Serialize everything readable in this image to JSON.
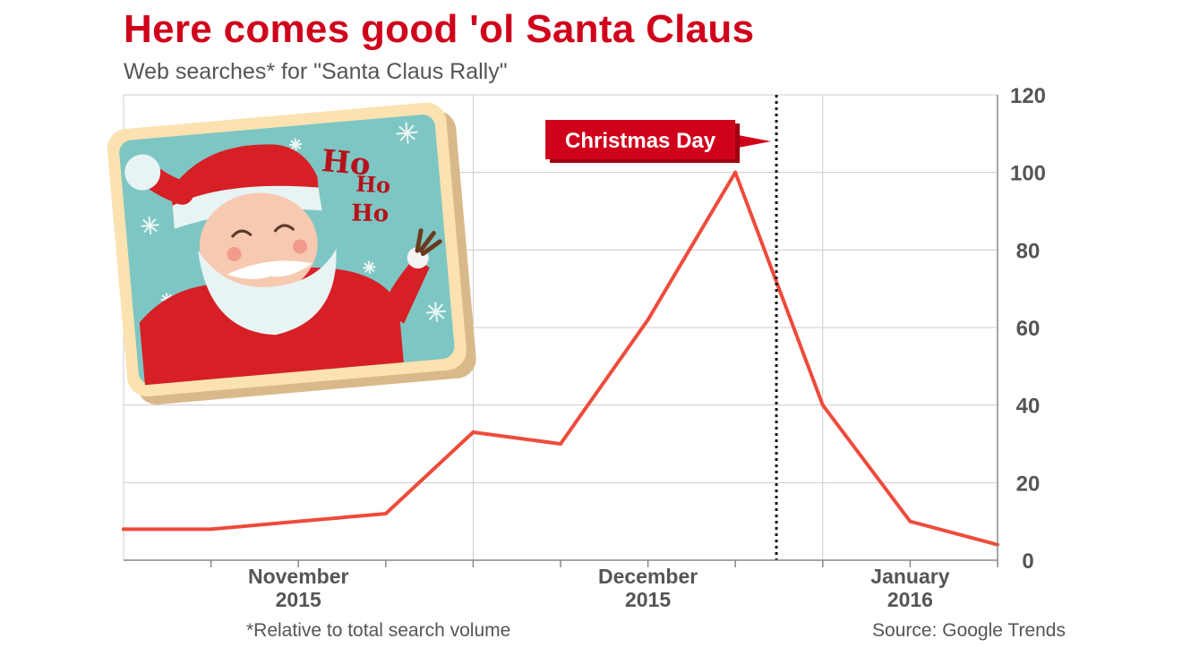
{
  "title": "Here comes good 'ol Santa Claus",
  "subtitle": "Web searches* for \"Santa Claus Rally\"",
  "footnote": "*Relative to total search volume",
  "source": "Source: Google Trends",
  "illustration": {
    "icon": "santa-claus-illustration",
    "text": [
      "Ho",
      "Ho",
      "Ho"
    ]
  },
  "colors": {
    "accent": "#d0021b",
    "line": "#ee4b3b",
    "grid": "#cccccc",
    "axis": "#555555"
  },
  "chart_data": {
    "type": "line",
    "x": [
      0,
      1,
      2,
      3,
      4,
      5,
      6,
      7,
      8,
      9,
      10
    ],
    "series": [
      {
        "values": [
          8,
          8,
          10,
          12,
          33,
          30,
          62,
          100,
          40,
          10,
          4
        ]
      }
    ],
    "ylim": [
      0,
      120
    ],
    "yticks": [
      0,
      20,
      40,
      60,
      80,
      100,
      120
    ],
    "xlim": [
      0,
      10
    ],
    "x_tick_marks": [
      1,
      2,
      3,
      4,
      5,
      6,
      7,
      8,
      9,
      10
    ],
    "x_labels": [
      {
        "at": 2,
        "lines": [
          "November",
          "2015"
        ]
      },
      {
        "at": 6,
        "lines": [
          "December",
          "2015"
        ]
      },
      {
        "at": 9,
        "lines": [
          "January",
          "2016"
        ]
      }
    ],
    "vertical_gridlines_at": [
      0,
      4,
      8,
      10
    ],
    "annotation": {
      "label": "Christmas Day",
      "x": 7.47,
      "style": "dotted-vertical-line"
    },
    "y_axis_side": "right",
    "grid": true
  }
}
